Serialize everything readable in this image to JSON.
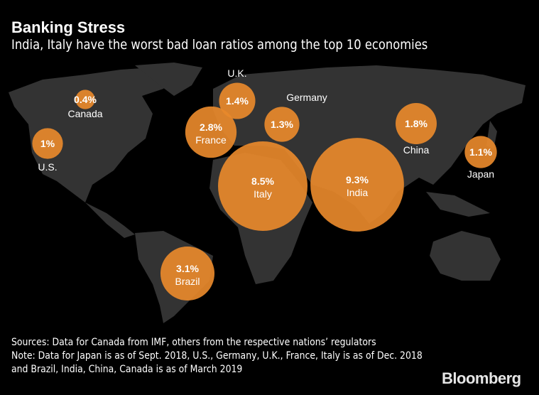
{
  "title": "Banking Stress",
  "subtitle": "India, Italy have the worst bad loan ratios among the top 10 economies",
  "chart_data": {
    "type": "bubble-map",
    "title": "Banking Stress",
    "subtitle": "India, Italy have the worst bad loan ratios among the top 10 economies",
    "unit": "%",
    "bubble_color": "#e8892b",
    "series": [
      {
        "country": "Canada",
        "value": 0.4,
        "label": "0.4%"
      },
      {
        "country": "U.S.",
        "value": 1.0,
        "label": "1%"
      },
      {
        "country": "U.K.",
        "value": 1.4,
        "label": "1.4%"
      },
      {
        "country": "France",
        "value": 2.8,
        "label": "2.8%"
      },
      {
        "country": "Germany",
        "value": 1.3,
        "label": "1.3%"
      },
      {
        "country": "Italy",
        "value": 8.5,
        "label": "8.5%"
      },
      {
        "country": "India",
        "value": 9.3,
        "label": "9.3%"
      },
      {
        "country": "China",
        "value": 1.8,
        "label": "1.8%"
      },
      {
        "country": "Japan",
        "value": 1.1,
        "label": "1.1%"
      },
      {
        "country": "Brazil",
        "value": 3.1,
        "label": "3.1%"
      }
    ]
  },
  "footer": {
    "sources": "Sources: Data for Canada from IMF, others from the respective nations’ regulators",
    "note": "Note: Data for Japan is as of Sept. 2018, U.S., Germany, U.K., France, Italy is as of Dec. 2018 and Brazil, India, China, Canada is as of March 2019",
    "logo": "Bloomberg"
  }
}
